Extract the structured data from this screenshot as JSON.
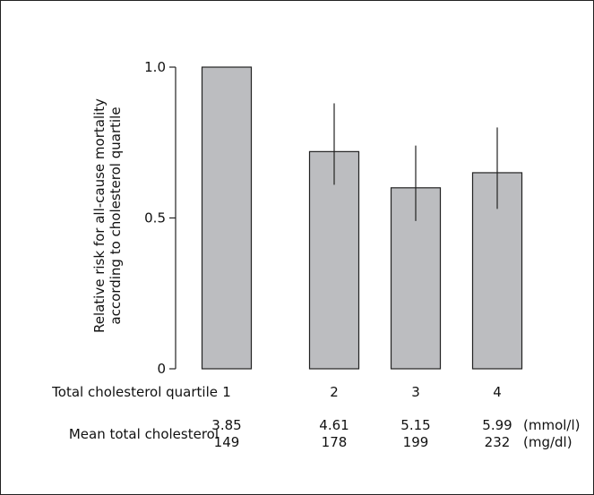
{
  "chart_data": {
    "type": "bar",
    "ylabel": "Relative risk for all-cause mortality according to cholesterol quartile",
    "ylabel_lines": [
      "Relative risk for all-cause mortality",
      "according to cholesterol quartile"
    ],
    "ylim": [
      0,
      1.0
    ],
    "yticks": [
      {
        "value": 0,
        "label": "0"
      },
      {
        "value": 0.5,
        "label": "0.5"
      },
      {
        "value": 1.0,
        "label": "1.0"
      }
    ],
    "grid": false,
    "colors": {
      "bar": "#bcbdc0",
      "stroke": "#222222"
    },
    "categories": [
      "1",
      "2",
      "3",
      "4"
    ],
    "values": [
      1.0,
      0.72,
      0.6,
      0.65
    ],
    "error_bars": [
      null,
      [
        0.61,
        0.88
      ],
      [
        0.49,
        0.74
      ],
      [
        0.53,
        0.8
      ]
    ],
    "row_labels": {
      "quartile": "Total cholesterol quartile",
      "mean": "Mean total cholesterol"
    },
    "mean_mmol": [
      "3.85",
      "4.61",
      "5.15",
      "5.99"
    ],
    "mean_mgdl": [
      "149",
      "178",
      "199",
      "232"
    ],
    "units": {
      "mmol": "(mmol/l)",
      "mgdl": "(mg/dl)"
    }
  }
}
